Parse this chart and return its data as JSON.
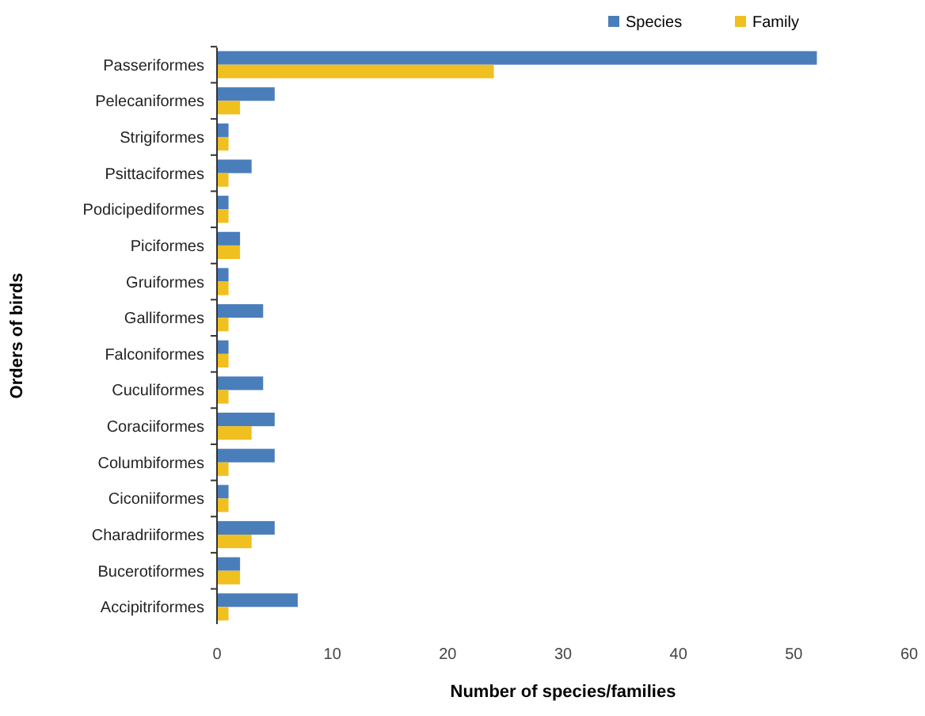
{
  "chart_data": {
    "type": "bar",
    "orientation": "horizontal",
    "xlabel": "Number of species/families",
    "ylabel": "Orders of birds",
    "categories": [
      "Passeriformes",
      "Pelecaniformes",
      "Strigiformes",
      "Psittaciformes",
      "Podicipediformes",
      "Piciformes",
      "Gruiformes",
      "Galliformes",
      "Falconiformes",
      "Cuculiformes",
      "Coraciiformes",
      "Columbiformes",
      "Ciconiiformes",
      "Charadriiformes",
      "Bucerotiformes",
      "Accipitriformes"
    ],
    "series": [
      {
        "name": "Species",
        "color": "#4a7ebb",
        "values": [
          52,
          5,
          1,
          3,
          1,
          2,
          1,
          4,
          1,
          4,
          5,
          5,
          1,
          5,
          2,
          7
        ]
      },
      {
        "name": "Family",
        "color": "#f0c020",
        "values": [
          24,
          2,
          1,
          1,
          1,
          2,
          1,
          1,
          1,
          1,
          3,
          1,
          1,
          3,
          2,
          1
        ]
      }
    ],
    "xlim": [
      0,
      60
    ],
    "xticks": [
      0,
      10,
      20,
      30,
      40,
      50,
      60
    ],
    "grid": false,
    "legend": "top right"
  }
}
